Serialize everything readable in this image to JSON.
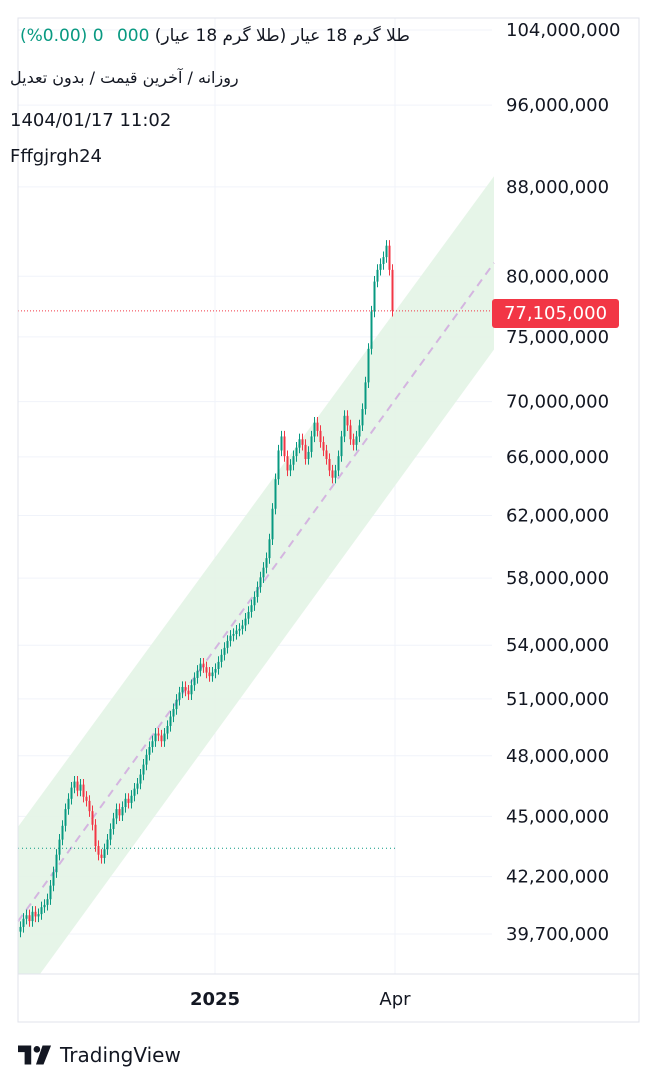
{
  "header": {
    "symbol_title": "طلا گرم 18 عیار (طلا گرم 18 عیار)",
    "change_text": "0 (0.00%)",
    "ohlc_partial": "000",
    "subtitle": "روزانه / آخرین قیمت / بدون تعدیل",
    "datetime": "1404/01/17 11:02",
    "username": "Fffgjrgh24"
  },
  "last_price_label": "77,105,000",
  "brand": {
    "name": "TradingView",
    "logo_icon": "tradingview-logo-icon"
  },
  "colors": {
    "up": "#089981",
    "down": "#f23645",
    "channel": "#e3f4e5",
    "midline": "#d4b5e0"
  },
  "chart_data": {
    "type": "candlestick",
    "y_scale": "log",
    "ylim": [
      39200000,
      104500000
    ],
    "y_ticks": [
      {
        "value": 104000000,
        "label": "104,000,000"
      },
      {
        "value": 96000000,
        "label": "96,000,000"
      },
      {
        "value": 88000000,
        "label": "88,000,000"
      },
      {
        "value": 80000000,
        "label": "80,000,000"
      },
      {
        "value": 75000000,
        "label": "75,000,000"
      },
      {
        "value": 70000000,
        "label": "70,000,000"
      },
      {
        "value": 66000000,
        "label": "66,000,000"
      },
      {
        "value": 62000000,
        "label": "62,000,000"
      },
      {
        "value": 58000000,
        "label": "58,000,000"
      },
      {
        "value": 54000000,
        "label": "54,000,000"
      },
      {
        "value": 51000000,
        "label": "51,000,000"
      },
      {
        "value": 48000000,
        "label": "48,000,000"
      },
      {
        "value": 45000000,
        "label": "45,000,000"
      },
      {
        "value": 42200000,
        "label": "42,200,000"
      },
      {
        "value": 39700000,
        "label": "39,700,000"
      }
    ],
    "x_ticks": [
      {
        "index": 65,
        "label": "2025"
      },
      {
        "index": 125,
        "label": "Apr"
      }
    ],
    "last_price": 77105000,
    "dotted_level": 43500000,
    "channel": {
      "start_index": 0,
      "end_index": 158,
      "upper_start": 44500000,
      "upper_end": 89000000,
      "lower_start": 39200000,
      "lower_end": 74000000
    },
    "closes": [
      40000000,
      40350000,
      40500000,
      40250000,
      40650000,
      40450000,
      40550000,
      40850000,
      40950000,
      41200000,
      41800000,
      42400000,
      43200000,
      43900000,
      44550000,
      45350000,
      45850000,
      46400000,
      46700000,
      46250000,
      46550000,
      45950000,
      45750000,
      45250000,
      44600000,
      43600000,
      43200000,
      43050000,
      43450000,
      43900000,
      44400000,
      44900000,
      45350000,
      45050000,
      45450000,
      45850000,
      45650000,
      46000000,
      46350000,
      46600000,
      47050000,
      47550000,
      48050000,
      48450000,
      48750000,
      49150000,
      49050000,
      48750000,
      49150000,
      49550000,
      50050000,
      50450000,
      50950000,
      51350000,
      51650000,
      51450000,
      51250000,
      51750000,
      52150000,
      52550000,
      52950000,
      52750000,
      52450000,
      52250000,
      52450000,
      52650000,
      53050000,
      53450000,
      53850000,
      54250000,
      54550000,
      54650000,
      54850000,
      54950000,
      55150000,
      55550000,
      55950000,
      56350000,
      56850000,
      57450000,
      58050000,
      58650000,
      59250000,
      60450000,
      62450000,
      64450000,
      66450000,
      67450000,
      66050000,
      65050000,
      65450000,
      66050000,
      66650000,
      67250000,
      66850000,
      65850000,
      66350000,
      67450000,
      68450000,
      67850000,
      67050000,
      66450000,
      65850000,
      65050000,
      64550000,
      65050000,
      66050000,
      67450000,
      68950000,
      68250000,
      67250000,
      66850000,
      67450000,
      68250000,
      69450000,
      71450000,
      74050000,
      77050000,
      79550000,
      80550000,
      81050000,
      81650000,
      82650000,
      80550000,
      77105000
    ],
    "series": [
      {
        "name": ""
      }
    ]
  }
}
